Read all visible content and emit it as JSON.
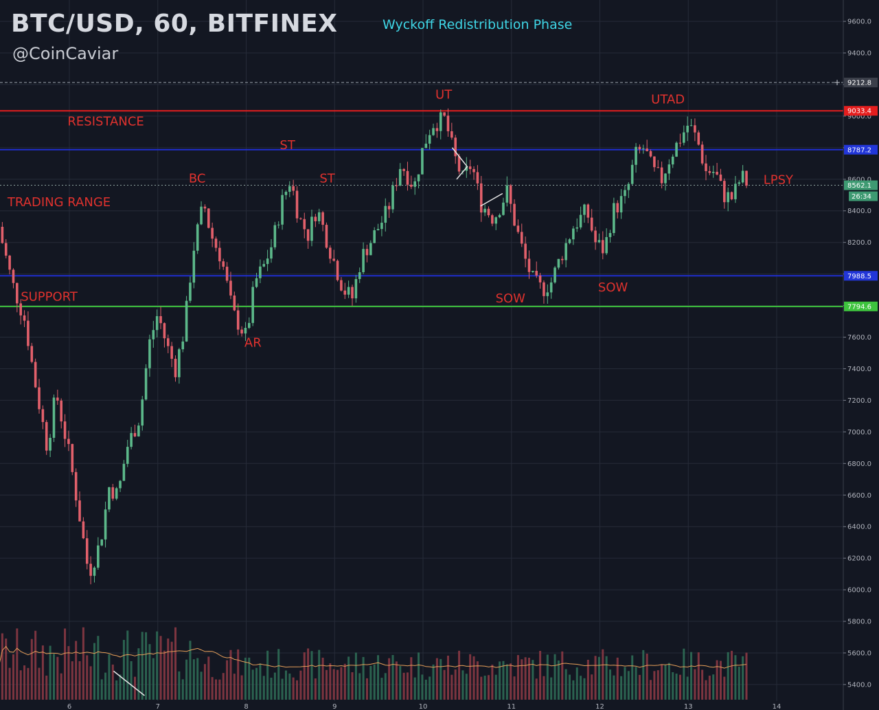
{
  "header": {
    "title": "BTC/USD, 60, BITFINEX",
    "handle": "@CoinCaviar",
    "phase_title": "Wyckoff Redistribution Phase"
  },
  "colors": {
    "background": "#131722",
    "grid": "#262b38",
    "up": "#5cb88a",
    "down": "#e2606b",
    "resistance_line": "#e51e1e",
    "range_line": "#1f2fd0",
    "support_line": "#3ec33e",
    "annotation_text": "#e0322e",
    "volume_ma": "#e8a05a"
  },
  "chart_data": {
    "type": "candlestick",
    "symbol": "BTC/USD",
    "interval": "60",
    "exchange": "BITFINEX",
    "title": "Wyckoff Redistribution Phase",
    "ylim": [
      5330,
      9670
    ],
    "x_ticks": [
      "6",
      "7",
      "8",
      "9",
      "10",
      "11",
      "12",
      "13",
      "14"
    ],
    "y_ticks": [
      "5400.0",
      "5600.0",
      "5800.0",
      "6000.0",
      "6200.0",
      "6400.0",
      "6600.0",
      "6800.0",
      "7000.0",
      "7200.0",
      "7400.0",
      "7600.0",
      "7800.0",
      "8000.0",
      "8200.0",
      "8400.0",
      "8600.0",
      "8800.0",
      "9000.0",
      "9200.0",
      "9400.0",
      "9600.0"
    ],
    "levels": [
      {
        "label": "9212.8",
        "value": 9212.8,
        "style": "dashed-crosshair"
      },
      {
        "label": "9033.4",
        "value": 9033.4,
        "style": "resistance"
      },
      {
        "label": "8787.2",
        "value": 8787.2,
        "style": "range-top"
      },
      {
        "label": "8562.1",
        "value": 8562.1,
        "style": "last-price"
      },
      {
        "label": "7988.5",
        "value": 7988.5,
        "style": "range-bottom"
      },
      {
        "label": "7794.6",
        "value": 7794.6,
        "style": "support"
      }
    ],
    "countdown": "26:34",
    "price_path": [
      [
        5.2,
        8300
      ],
      [
        5.35,
        7950
      ],
      [
        5.5,
        7700
      ],
      [
        5.6,
        7350
      ],
      [
        5.75,
        6900
      ],
      [
        5.85,
        7250
      ],
      [
        6.0,
        6850
      ],
      [
        6.12,
        6450
      ],
      [
        6.22,
        6100
      ],
      [
        6.35,
        6300
      ],
      [
        6.45,
        6650
      ],
      [
        6.55,
        6600
      ],
      [
        6.65,
        6900
      ],
      [
        6.8,
        7100
      ],
      [
        6.9,
        7550
      ],
      [
        7.0,
        7750
      ],
      [
        7.1,
        7550
      ],
      [
        7.2,
        7400
      ],
      [
        7.3,
        7650
      ],
      [
        7.4,
        8150
      ],
      [
        7.52,
        8450
      ],
      [
        7.6,
        8250
      ],
      [
        7.72,
        8100
      ],
      [
        7.85,
        7750
      ],
      [
        8.0,
        7600
      ],
      [
        8.1,
        7950
      ],
      [
        8.2,
        8050
      ],
      [
        8.3,
        8200
      ],
      [
        8.4,
        8450
      ],
      [
        8.5,
        8600
      ],
      [
        8.6,
        8350
      ],
      [
        8.7,
        8250
      ],
      [
        8.8,
        8420
      ],
      [
        8.95,
        8150
      ],
      [
        9.1,
        7900
      ],
      [
        9.2,
        7850
      ],
      [
        9.3,
        8100
      ],
      [
        9.45,
        8250
      ],
      [
        9.6,
        8400
      ],
      [
        9.75,
        8700
      ],
      [
        9.9,
        8550
      ],
      [
        10.0,
        8800
      ],
      [
        10.1,
        8950
      ],
      [
        10.25,
        8980
      ],
      [
        10.35,
        8750
      ],
      [
        10.45,
        8600
      ],
      [
        10.55,
        8700
      ],
      [
        10.65,
        8450
      ],
      [
        10.8,
        8350
      ],
      [
        10.95,
        8520
      ],
      [
        11.05,
        8300
      ],
      [
        11.15,
        8100
      ],
      [
        11.25,
        7950
      ],
      [
        11.35,
        7900
      ],
      [
        11.45,
        7950
      ],
      [
        11.55,
        8100
      ],
      [
        11.7,
        8300
      ],
      [
        11.85,
        8400
      ],
      [
        11.95,
        8200
      ],
      [
        12.05,
        8150
      ],
      [
        12.15,
        8400
      ],
      [
        12.3,
        8500
      ],
      [
        12.4,
        8750
      ],
      [
        12.5,
        8800
      ],
      [
        12.6,
        8650
      ],
      [
        12.7,
        8600
      ],
      [
        12.8,
        8750
      ],
      [
        12.9,
        8850
      ],
      [
        13.0,
        8950
      ],
      [
        13.1,
        8850
      ],
      [
        13.2,
        8650
      ],
      [
        13.3,
        8650
      ],
      [
        13.4,
        8500
      ],
      [
        13.5,
        8480
      ],
      [
        13.6,
        8620
      ],
      [
        13.68,
        8562
      ]
    ],
    "annotations": [
      {
        "text": "RESISTANCE",
        "x": 5.98,
        "y": 8940
      },
      {
        "text": "TRADING RANGE",
        "x": 5.3,
        "y": 8430
      },
      {
        "text": "SUPPORT",
        "x": 5.45,
        "y": 7830
      },
      {
        "text": "BC",
        "x": 7.35,
        "y": 8580
      },
      {
        "text": "ST",
        "x": 8.38,
        "y": 8790
      },
      {
        "text": "ST",
        "x": 8.83,
        "y": 8580
      },
      {
        "text": "AR",
        "x": 7.98,
        "y": 7540
      },
      {
        "text": "UT",
        "x": 10.14,
        "y": 9110
      },
      {
        "text": "UTAD",
        "x": 12.58,
        "y": 9080
      },
      {
        "text": "SOW",
        "x": 10.82,
        "y": 7820
      },
      {
        "text": "SOW",
        "x": 11.98,
        "y": 7890
      },
      {
        "text": "LPSY",
        "x": 13.85,
        "y": 8570
      }
    ],
    "volume_axis_max": 5200
  }
}
